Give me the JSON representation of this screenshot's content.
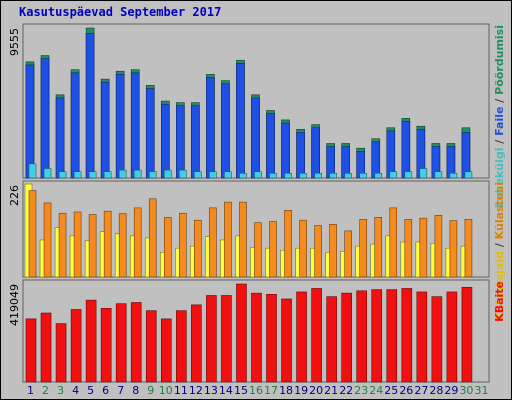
{
  "page": {
    "title": "Kasutuspäevad September 2017"
  },
  "colors": {
    "background": "#c0c0c0",
    "pages": "#1f50e6",
    "hits": "#3fd0e8",
    "visits": "#f58a1e",
    "visitors": "#ffff40",
    "bytes": "#f01010",
    "day_normal": "#000080",
    "day_weekend": "#208040"
  },
  "chart_data": [
    {
      "type": "bar",
      "title": "Kasutuspäevad September 2017",
      "ylabel": "Lehekülgi / Faile / Pöördumisi",
      "ylabel_parts": [
        {
          "text": "Lehekülgi",
          "color": "#40c0c0"
        },
        {
          "text": " / ",
          "color": "#404040"
        },
        {
          "text": "Faile",
          "color": "#2050e0"
        },
        {
          "text": " / ",
          "color": "#404040"
        },
        {
          "text": "Pöördumisi",
          "color": "#209060"
        }
      ],
      "ytick_max": "9555",
      "ylim": [
        0,
        9555
      ],
      "categories": [
        "1",
        "2",
        "3",
        "4",
        "5",
        "6",
        "7",
        "8",
        "9",
        "10",
        "11",
        "12",
        "13",
        "14",
        "15",
        "16",
        "17",
        "18",
        "19",
        "20",
        "21",
        "22",
        "23",
        "24",
        "25",
        "26",
        "27",
        "28",
        "29",
        "30",
        "31"
      ],
      "series": [
        {
          "name": "Pöördumisi",
          "color": "#209060",
          "values": [
            7400,
            7800,
            5300,
            6900,
            9555,
            6300,
            6800,
            6900,
            5900,
            4900,
            4800,
            4800,
            6600,
            6200,
            7500,
            5300,
            4300,
            3700,
            3100,
            3400,
            2200,
            2200,
            1900,
            2500,
            3200,
            3800,
            3300,
            2200,
            2200,
            3200,
            0
          ]
        },
        {
          "name": "Faile",
          "color": "#1f50e6",
          "values": [
            7200,
            7600,
            5100,
            6700,
            9200,
            6100,
            6600,
            6700,
            5700,
            4700,
            4600,
            4600,
            6400,
            6000,
            7300,
            5100,
            4100,
            3500,
            2900,
            3200,
            2000,
            2000,
            1700,
            2300,
            3000,
            3600,
            3100,
            2000,
            2000,
            2900,
            0
          ]
        },
        {
          "name": "Lehekülgi",
          "color": "#3fd0e8",
          "values": [
            900,
            600,
            400,
            400,
            400,
            400,
            500,
            500,
            400,
            500,
            500,
            400,
            400,
            400,
            300,
            400,
            300,
            300,
            300,
            300,
            300,
            300,
            300,
            300,
            400,
            400,
            600,
            400,
            300,
            400,
            0
          ]
        }
      ]
    },
    {
      "type": "bar",
      "ylabel": "Külastajaid / Külastusi",
      "ylabel_parts": [
        {
          "text": "Külastajaid",
          "color": "#e0c000"
        },
        {
          "text": " / ",
          "color": "#404040"
        },
        {
          "text": "Külastusi",
          "color": "#e08000"
        }
      ],
      "ytick_max": "226",
      "ylim": [
        0,
        226
      ],
      "categories": [
        "1",
        "2",
        "3",
        "4",
        "5",
        "6",
        "7",
        "8",
        "9",
        "10",
        "11",
        "12",
        "13",
        "14",
        "15",
        "16",
        "17",
        "18",
        "19",
        "20",
        "21",
        "22",
        "23",
        "24",
        "25",
        "26",
        "27",
        "28",
        "29",
        "30",
        "31"
      ],
      "series": [
        {
          "name": "Külastusi",
          "color": "#f58a1e",
          "values": [
            210,
            180,
            155,
            158,
            152,
            160,
            154,
            168,
            190,
            145,
            155,
            138,
            168,
            182,
            182,
            132,
            135,
            162,
            138,
            125,
            128,
            112,
            140,
            145,
            168,
            140,
            143,
            150,
            137,
            140,
            0
          ]
        },
        {
          "name": "Külastajaid",
          "color": "#ffff40",
          "values": [
            226,
            90,
            120,
            100,
            88,
            110,
            105,
            100,
            95,
            60,
            70,
            75,
            98,
            90,
            100,
            72,
            70,
            65,
            70,
            70,
            60,
            62,
            75,
            80,
            100,
            85,
            85,
            82,
            70,
            75,
            0
          ]
        }
      ]
    },
    {
      "type": "bar",
      "ylabel": "KBaite",
      "ylabel_parts": [
        {
          "text": "KBaite",
          "color": "#f01010"
        }
      ],
      "ytick_max": "419049",
      "ylim": [
        0,
        419049
      ],
      "categories": [
        "1",
        "2",
        "3",
        "4",
        "5",
        "6",
        "7",
        "8",
        "9",
        "10",
        "11",
        "12",
        "13",
        "14",
        "15",
        "16",
        "17",
        "18",
        "19",
        "20",
        "21",
        "22",
        "23",
        "24",
        "25",
        "26",
        "27",
        "28",
        "29",
        "30",
        "31"
      ],
      "weekend_days": [
        "2",
        "3",
        "9",
        "10",
        "16",
        "17",
        "23",
        "24",
        "30",
        "31"
      ],
      "series": [
        {
          "name": "KBaite",
          "color": "#f01010",
          "values": [
            270000,
            295000,
            250000,
            310000,
            350000,
            315000,
            335000,
            340000,
            305000,
            270000,
            305000,
            330000,
            370000,
            370000,
            419049,
            380000,
            375000,
            355000,
            385000,
            400000,
            365000,
            380000,
            390000,
            395000,
            395000,
            400000,
            385000,
            365000,
            385000,
            405000,
            0
          ]
        }
      ]
    }
  ]
}
